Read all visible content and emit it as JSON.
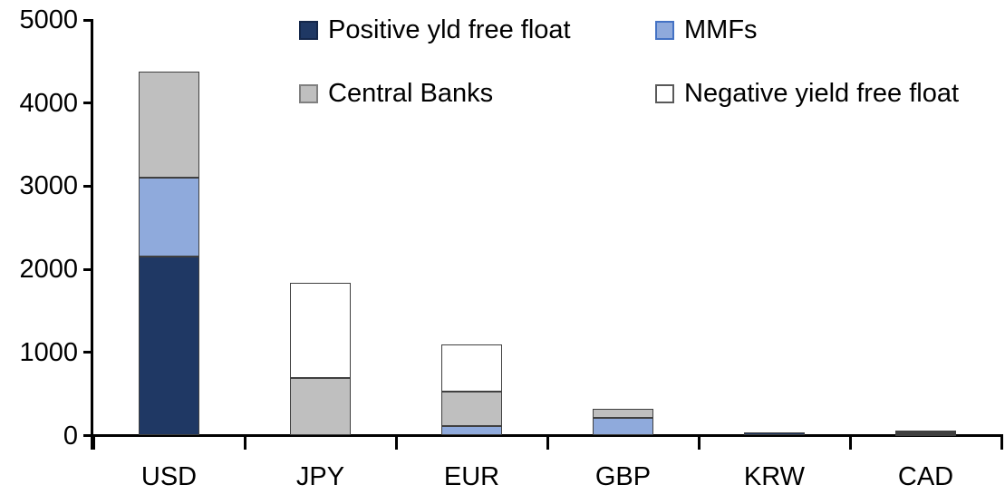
{
  "chart_data": {
    "type": "bar",
    "stacked": true,
    "title": "",
    "xlabel": "",
    "ylabel": "",
    "categories": [
      "USD",
      "JPY",
      "EUR",
      "GBP",
      "KRW",
      "CAD"
    ],
    "series": [
      {
        "name": "Positive yld free float",
        "color": "#1f3864",
        "border_color": "#14274a",
        "values": [
          2150,
          0,
          0,
          0,
          40,
          20
        ]
      },
      {
        "name": "MMFs",
        "color": "#8faadc",
        "border_color": "#4472c4",
        "values": [
          950,
          0,
          110,
          210,
          0,
          15
        ]
      },
      {
        "name": "Central Banks",
        "color": "#bfbfbf",
        "border_color": "#808080",
        "values": [
          1280,
          690,
          420,
          110,
          0,
          20
        ]
      },
      {
        "name": "Negative yield free float",
        "color": "#ffffff",
        "border_color": "#595959",
        "values": [
          0,
          1150,
          570,
          0,
          0,
          0
        ]
      }
    ],
    "totals": [
      4380,
      1840,
      1100,
      320,
      40,
      55
    ],
    "ylim": [
      0,
      5000
    ],
    "yticks": [
      0,
      1000,
      2000,
      3000,
      4000,
      5000
    ],
    "grid": false,
    "legend_position": "top",
    "axis_color": "#000000",
    "background_color": "#ffffff"
  }
}
